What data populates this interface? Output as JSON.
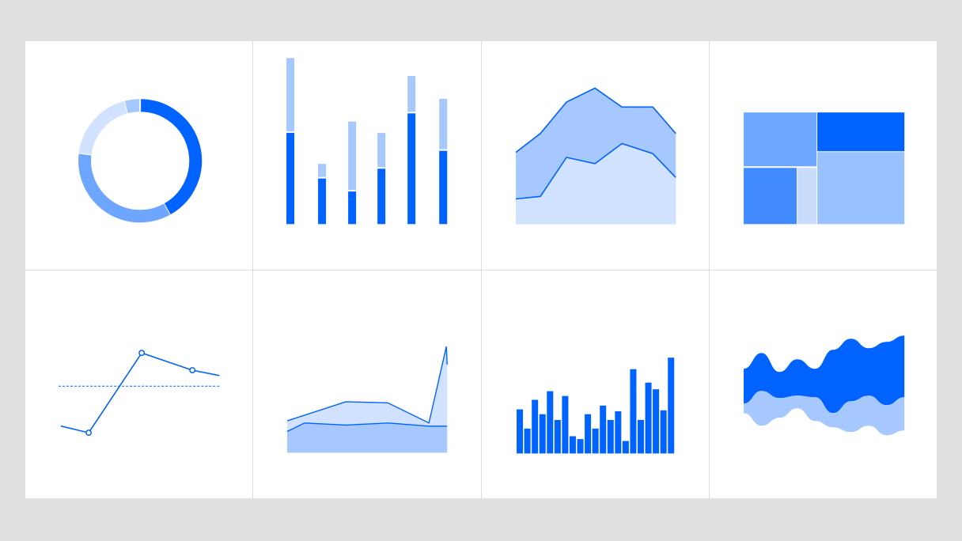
{
  "colors": {
    "dark": "#0062ff",
    "mid": "#6ea6ff",
    "light": "#a6c8ff",
    "lighter": "#d0e2ff",
    "pale": "#c9dcfc"
  },
  "chart_data": [
    {
      "type": "pie",
      "variant": "donut",
      "values": [
        42,
        35,
        19,
        4
      ]
    },
    {
      "type": "bar",
      "variant": "stacked",
      "ylim": [
        0,
        100
      ],
      "series": [
        {
          "values": [
            56,
            28,
            20,
            34,
            68,
            45
          ]
        },
        {
          "values": [
            45,
            8,
            42,
            21,
            22,
            31
          ]
        }
      ]
    },
    {
      "type": "area",
      "ylim": [
        0,
        100
      ],
      "x": [
        0,
        1,
        2,
        3,
        4,
        5,
        6
      ],
      "series": [
        {
          "values": [
            20,
            22,
            53,
            48,
            64,
            56,
            37
          ]
        },
        {
          "values": [
            57,
            72,
            97,
            108,
            93,
            93,
            72
          ]
        }
      ]
    },
    {
      "type": "heatmap",
      "variant": "treemap",
      "values": [
        35,
        28,
        22,
        15
      ]
    },
    {
      "type": "line",
      "reference": 50,
      "ylim": [
        0,
        100
      ],
      "x": [
        0,
        1,
        2,
        3,
        4
      ],
      "values": [
        20,
        15,
        75,
        62,
        58
      ],
      "markers": [
        1,
        2,
        3
      ]
    },
    {
      "type": "area",
      "variant": "overlap",
      "ylim": [
        0,
        100
      ],
      "x": [
        0,
        1,
        2,
        3,
        4,
        5
      ],
      "series": [
        {
          "values": [
            30,
            48,
            47,
            28,
            100,
            83
          ]
        },
        {
          "values": [
            20,
            28,
            26,
            28,
            25,
            25
          ]
        }
      ]
    },
    {
      "type": "bar",
      "ylim": [
        0,
        100
      ],
      "values": [
        46,
        26,
        56,
        41,
        65,
        35,
        60,
        18,
        15,
        41,
        26,
        50,
        35,
        44,
        13,
        88,
        35,
        74,
        67,
        45,
        100
      ]
    },
    {
      "type": "area",
      "variant": "streamgraph",
      "series": [
        {
          "values": [
            50,
            52,
            70,
            48,
            60,
            42,
            78,
            56,
            62,
            70
          ]
        },
        {
          "values": [
            18,
            20,
            18,
            30,
            18,
            14,
            20,
            18,
            16,
            18
          ]
        }
      ]
    }
  ]
}
